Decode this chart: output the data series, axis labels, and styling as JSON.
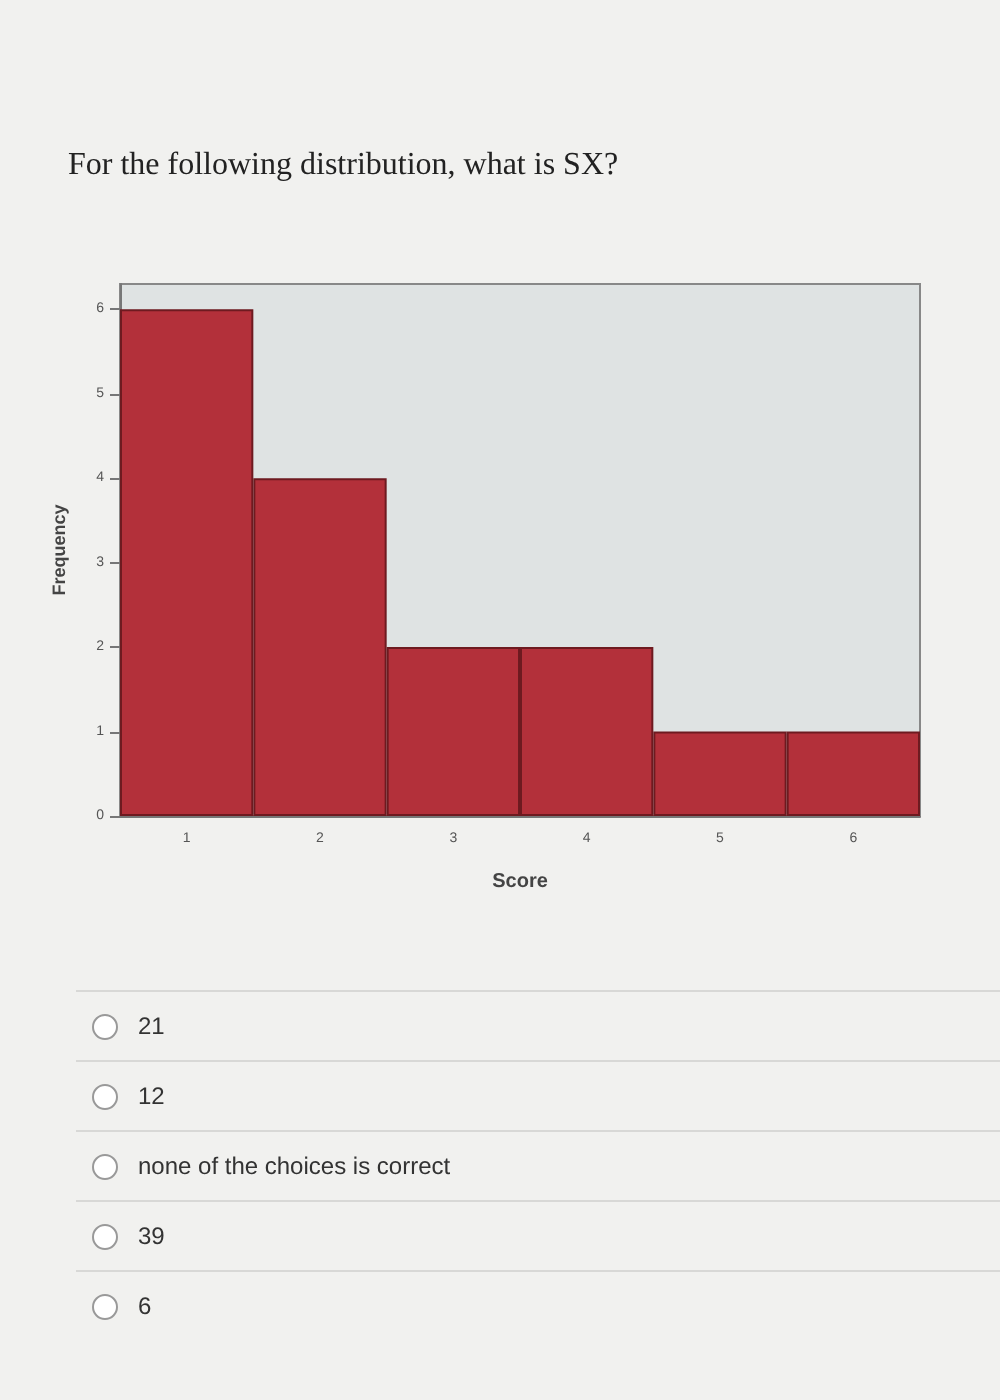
{
  "chart_data": {
    "type": "bar",
    "title": "For the following distribution, what is SX?",
    "categories": [
      "1",
      "2",
      "3",
      "4",
      "5",
      "6"
    ],
    "values": [
      6,
      4,
      2,
      2,
      1,
      1
    ],
    "color": "#b3303a",
    "xlabel": "Score",
    "ylabel": "Frequency",
    "ylim": [
      0,
      6.3
    ],
    "yticks": [
      0,
      1,
      2,
      3,
      4,
      5,
      6
    ],
    "grid": false,
    "annotations": [
      "21",
      "12",
      "none of the choices is correct",
      "39",
      "6"
    ]
  }
}
